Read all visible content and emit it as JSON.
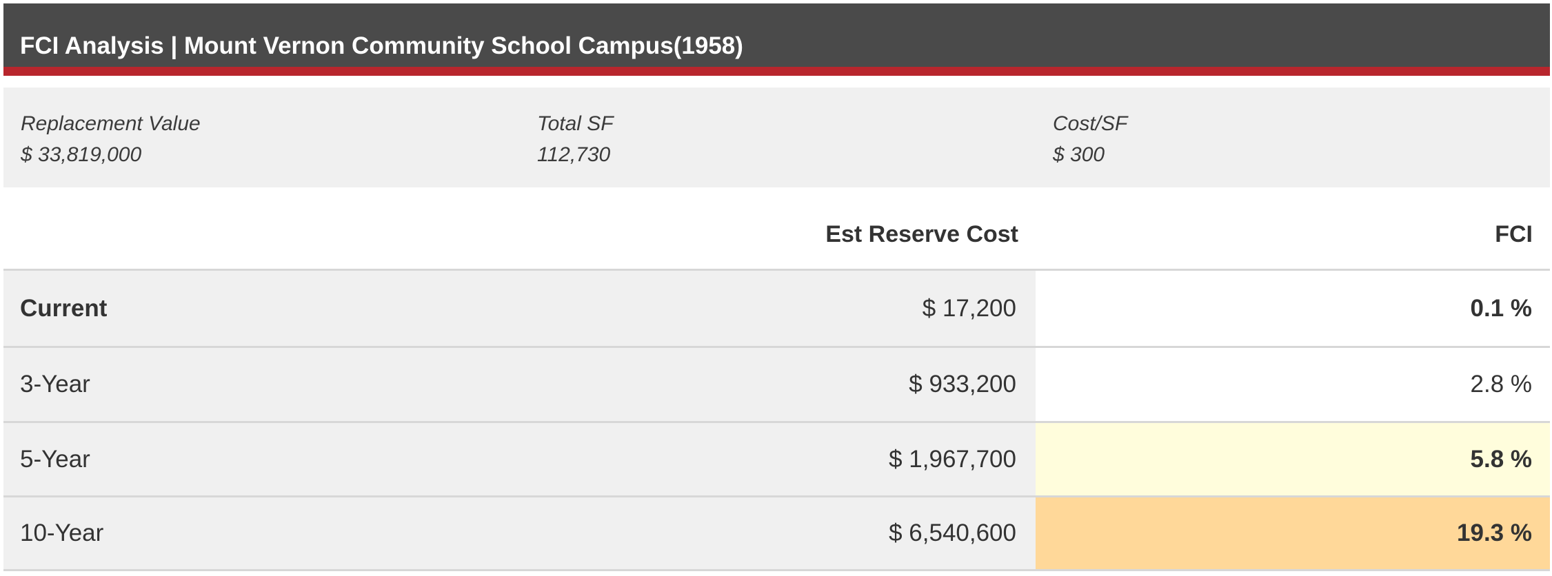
{
  "header": {
    "title": "FCI Analysis | Mount Vernon Community School Campus(1958)"
  },
  "stats": [
    {
      "label": "Replacement Value",
      "value": "$ 33,819,000"
    },
    {
      "label": "Total SF",
      "value": "112,730"
    },
    {
      "label": "Cost/SF",
      "value": "$ 300"
    }
  ],
  "table": {
    "columns": {
      "cost": "Est Reserve Cost",
      "fci": "FCI"
    },
    "rows": [
      {
        "period": "Current",
        "cost": "$ 17,200",
        "fci": "0.1 %",
        "fci_color": "#ffffff"
      },
      {
        "period": "3-Year",
        "cost": "$ 933,200",
        "fci": "2.8 %",
        "fci_color": "#ffffff"
      },
      {
        "period": "5-Year",
        "cost": "$ 1,967,700",
        "fci": "5.8 %",
        "fci_color": "#fffddc"
      },
      {
        "period": "10-Year",
        "cost": "$ 6,540,600",
        "fci": "19.3 %",
        "fci_color": "#ffd899"
      }
    ]
  },
  "colors": {
    "header_bg": "#4a4a4a",
    "accent": "#b8262d",
    "band": "#f0f0f0"
  }
}
